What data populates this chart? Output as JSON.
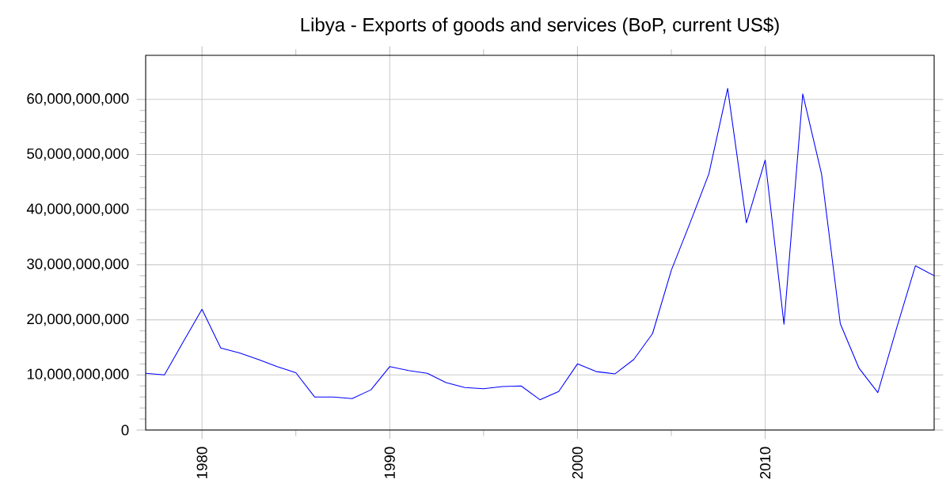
{
  "chart_data": {
    "type": "line",
    "title": "Libya - Exports of goods and services (BoP, current US$)",
    "x": [
      1977,
      1978,
      1979,
      1980,
      1981,
      1982,
      1983,
      1984,
      1985,
      1986,
      1987,
      1988,
      1989,
      1990,
      1991,
      1992,
      1993,
      1994,
      1995,
      1996,
      1997,
      1998,
      1999,
      2000,
      2001,
      2002,
      2003,
      2004,
      2005,
      2006,
      2007,
      2008,
      2009,
      2010,
      2011,
      2012,
      2013,
      2014,
      2015,
      2016,
      2017,
      2018,
      2019
    ],
    "series": [
      {
        "color": "#0000ff",
        "values": [
          10300000000,
          10000000000,
          16000000000,
          21900000000,
          14900000000,
          14000000000,
          12800000000,
          11500000000,
          10400000000,
          6000000000,
          6000000000,
          5700000000,
          7300000000,
          11500000000,
          10800000000,
          10300000000,
          8600000000,
          7700000000,
          7500000000,
          7900000000,
          8000000000,
          5500000000,
          7000000000,
          12000000000,
          10600000000,
          10200000000,
          12800000000,
          17500000000,
          29000000000,
          37600000000,
          46500000000,
          62000000000,
          37600000000,
          49000000000,
          19200000000,
          61000000000,
          46500000000,
          19300000000,
          11200000000,
          6800000000,
          18500000000,
          29800000000,
          28000000000
        ]
      }
    ],
    "xlim": [
      1977,
      2019
    ],
    "ylim": [
      0,
      68000000000
    ],
    "xticks": [
      1980,
      1990,
      2000,
      2010
    ],
    "yticks": [
      0,
      {
        "value": 10000000000,
        "label": "10,000,000,000"
      },
      {
        "value": 20000000000,
        "label": "20,000,000,000"
      },
      {
        "value": 30000000000,
        "label": "30,000,000,000"
      },
      {
        "value": 40000000000,
        "label": "40,000,000,000"
      },
      {
        "value": 50000000000,
        "label": "50,000,000,000"
      },
      {
        "value": 60000000000,
        "label": "60,000,000,000"
      }
    ],
    "grid": true,
    "marker": "none",
    "line_style": "solid"
  }
}
